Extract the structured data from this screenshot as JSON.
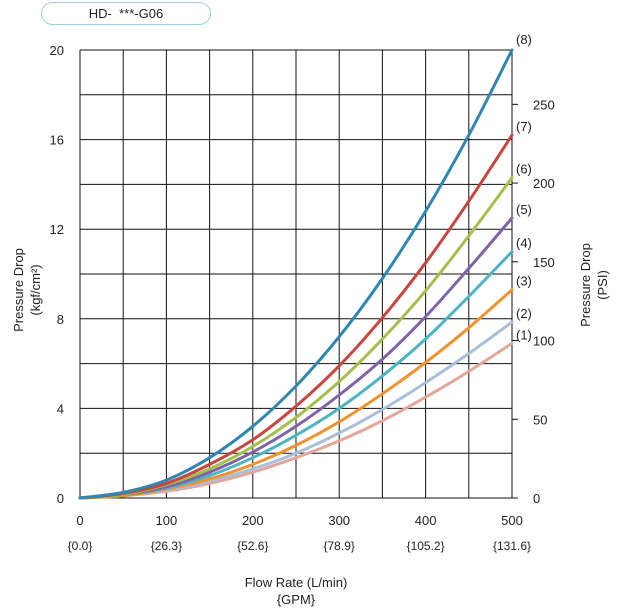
{
  "model_label": "HD-  ***-G06",
  "chart_data": {
    "type": "line",
    "title": "",
    "xlabel": "Flow Rate (L/min)",
    "xlabel_secondary": "{GPM}",
    "ylabel": "Pressure Drop",
    "ylabel_unit": "(kgf/cm²)",
    "ylabel_right": "Pressure Drop",
    "ylabel_right_unit": "(PSI)",
    "xlim": [
      0,
      500
    ],
    "ylim": [
      0,
      20
    ],
    "ylim_right": [
      0,
      284.5
    ],
    "grid": true,
    "x_ticks": [
      0,
      100,
      200,
      300,
      400,
      500
    ],
    "x_tick_labels": [
      "0",
      "100",
      "200",
      "300",
      "400",
      "500"
    ],
    "x_tick_labels_gpm": [
      "{0.0}",
      "{26.3}",
      "{52.6}",
      "{78.9}",
      "{105.2}",
      "{131.6}"
    ],
    "y_ticks": [
      0,
      4,
      8,
      12,
      16,
      20
    ],
    "y_tick_labels": [
      "0",
      "4",
      "8",
      "12",
      "16",
      "20"
    ],
    "y_right_ticks": [
      0,
      50,
      100,
      150,
      200,
      250
    ],
    "y_right_tick_labels": [
      "0",
      "50",
      "100",
      "150",
      "200",
      "250"
    ],
    "x": [
      0,
      50,
      100,
      150,
      200,
      250,
      300,
      350,
      400,
      450,
      500
    ],
    "series": [
      {
        "name": "(1)",
        "color": "#e2a69a",
        "values": [
          0,
          0.1,
          0.3,
          0.65,
          1.15,
          1.8,
          2.55,
          3.45,
          4.5,
          5.65,
          6.9
        ]
      },
      {
        "name": "(2)",
        "color": "#a9bfd9",
        "values": [
          0,
          0.1,
          0.35,
          0.75,
          1.3,
          2.0,
          2.9,
          3.95,
          5.15,
          6.45,
          7.85
        ]
      },
      {
        "name": "(3)",
        "color": "#f0922e",
        "values": [
          0,
          0.1,
          0.4,
          0.85,
          1.5,
          2.35,
          3.4,
          4.65,
          6.05,
          7.6,
          9.3
        ]
      },
      {
        "name": "(4)",
        "color": "#4db4c2",
        "values": [
          0,
          0.15,
          0.45,
          1.0,
          1.8,
          2.8,
          4.0,
          5.45,
          7.1,
          9.0,
          11.0
        ]
      },
      {
        "name": "(5)",
        "color": "#7f63a8",
        "values": [
          0,
          0.15,
          0.5,
          1.15,
          2.05,
          3.2,
          4.6,
          6.2,
          8.1,
          10.25,
          12.5
        ]
      },
      {
        "name": "(6)",
        "color": "#a3c04a",
        "values": [
          0,
          0.15,
          0.6,
          1.3,
          2.3,
          3.6,
          5.2,
          7.1,
          9.25,
          11.7,
          14.3
        ]
      },
      {
        "name": "(7)",
        "color": "#c8463f",
        "values": [
          0,
          0.2,
          0.65,
          1.5,
          2.6,
          4.1,
          5.9,
          8.05,
          10.5,
          13.25,
          16.2
        ]
      },
      {
        "name": "(8)",
        "color": "#2e86b3",
        "values": [
          0,
          0.25,
          0.8,
          1.8,
          3.2,
          5.0,
          7.2,
          9.8,
          12.8,
          16.2,
          20.0
        ]
      }
    ]
  }
}
